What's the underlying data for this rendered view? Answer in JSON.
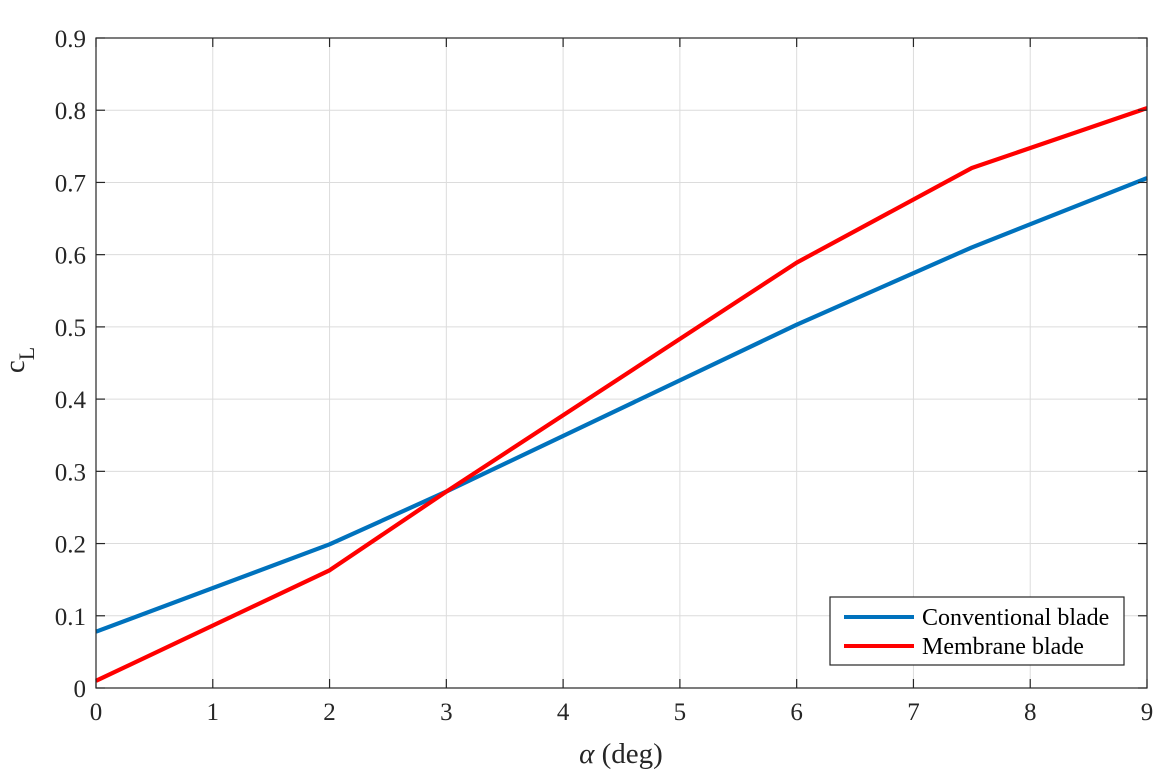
{
  "chart_data": {
    "type": "line",
    "xlabel_symbol": "α",
    "xlabel_unit": " (deg)",
    "ylabel_main": "c",
    "ylabel_sub": "L",
    "xlim": [
      0,
      9
    ],
    "ylim": [
      0,
      0.9
    ],
    "xticks": [
      "0",
      "1",
      "2",
      "3",
      "4",
      "5",
      "6",
      "7",
      "8",
      "9"
    ],
    "yticks": [
      "0",
      "0.1",
      "0.2",
      "0.3",
      "0.4",
      "0.5",
      "0.6",
      "0.7",
      "0.8",
      "0.9"
    ],
    "grid": true,
    "legend_position": "bottom-right",
    "series": [
      {
        "name": "Conventional blade",
        "color": "#0072bd",
        "x": [
          0,
          2,
          3,
          6,
          7.5,
          9
        ],
        "y": [
          0.078,
          0.199,
          0.272,
          0.503,
          0.61,
          0.706
        ]
      },
      {
        "name": "Membrane blade",
        "color": "#ff0000",
        "x": [
          0,
          2,
          3,
          6,
          7.5,
          9
        ],
        "y": [
          0.01,
          0.163,
          0.272,
          0.589,
          0.72,
          0.803
        ]
      }
    ]
  }
}
